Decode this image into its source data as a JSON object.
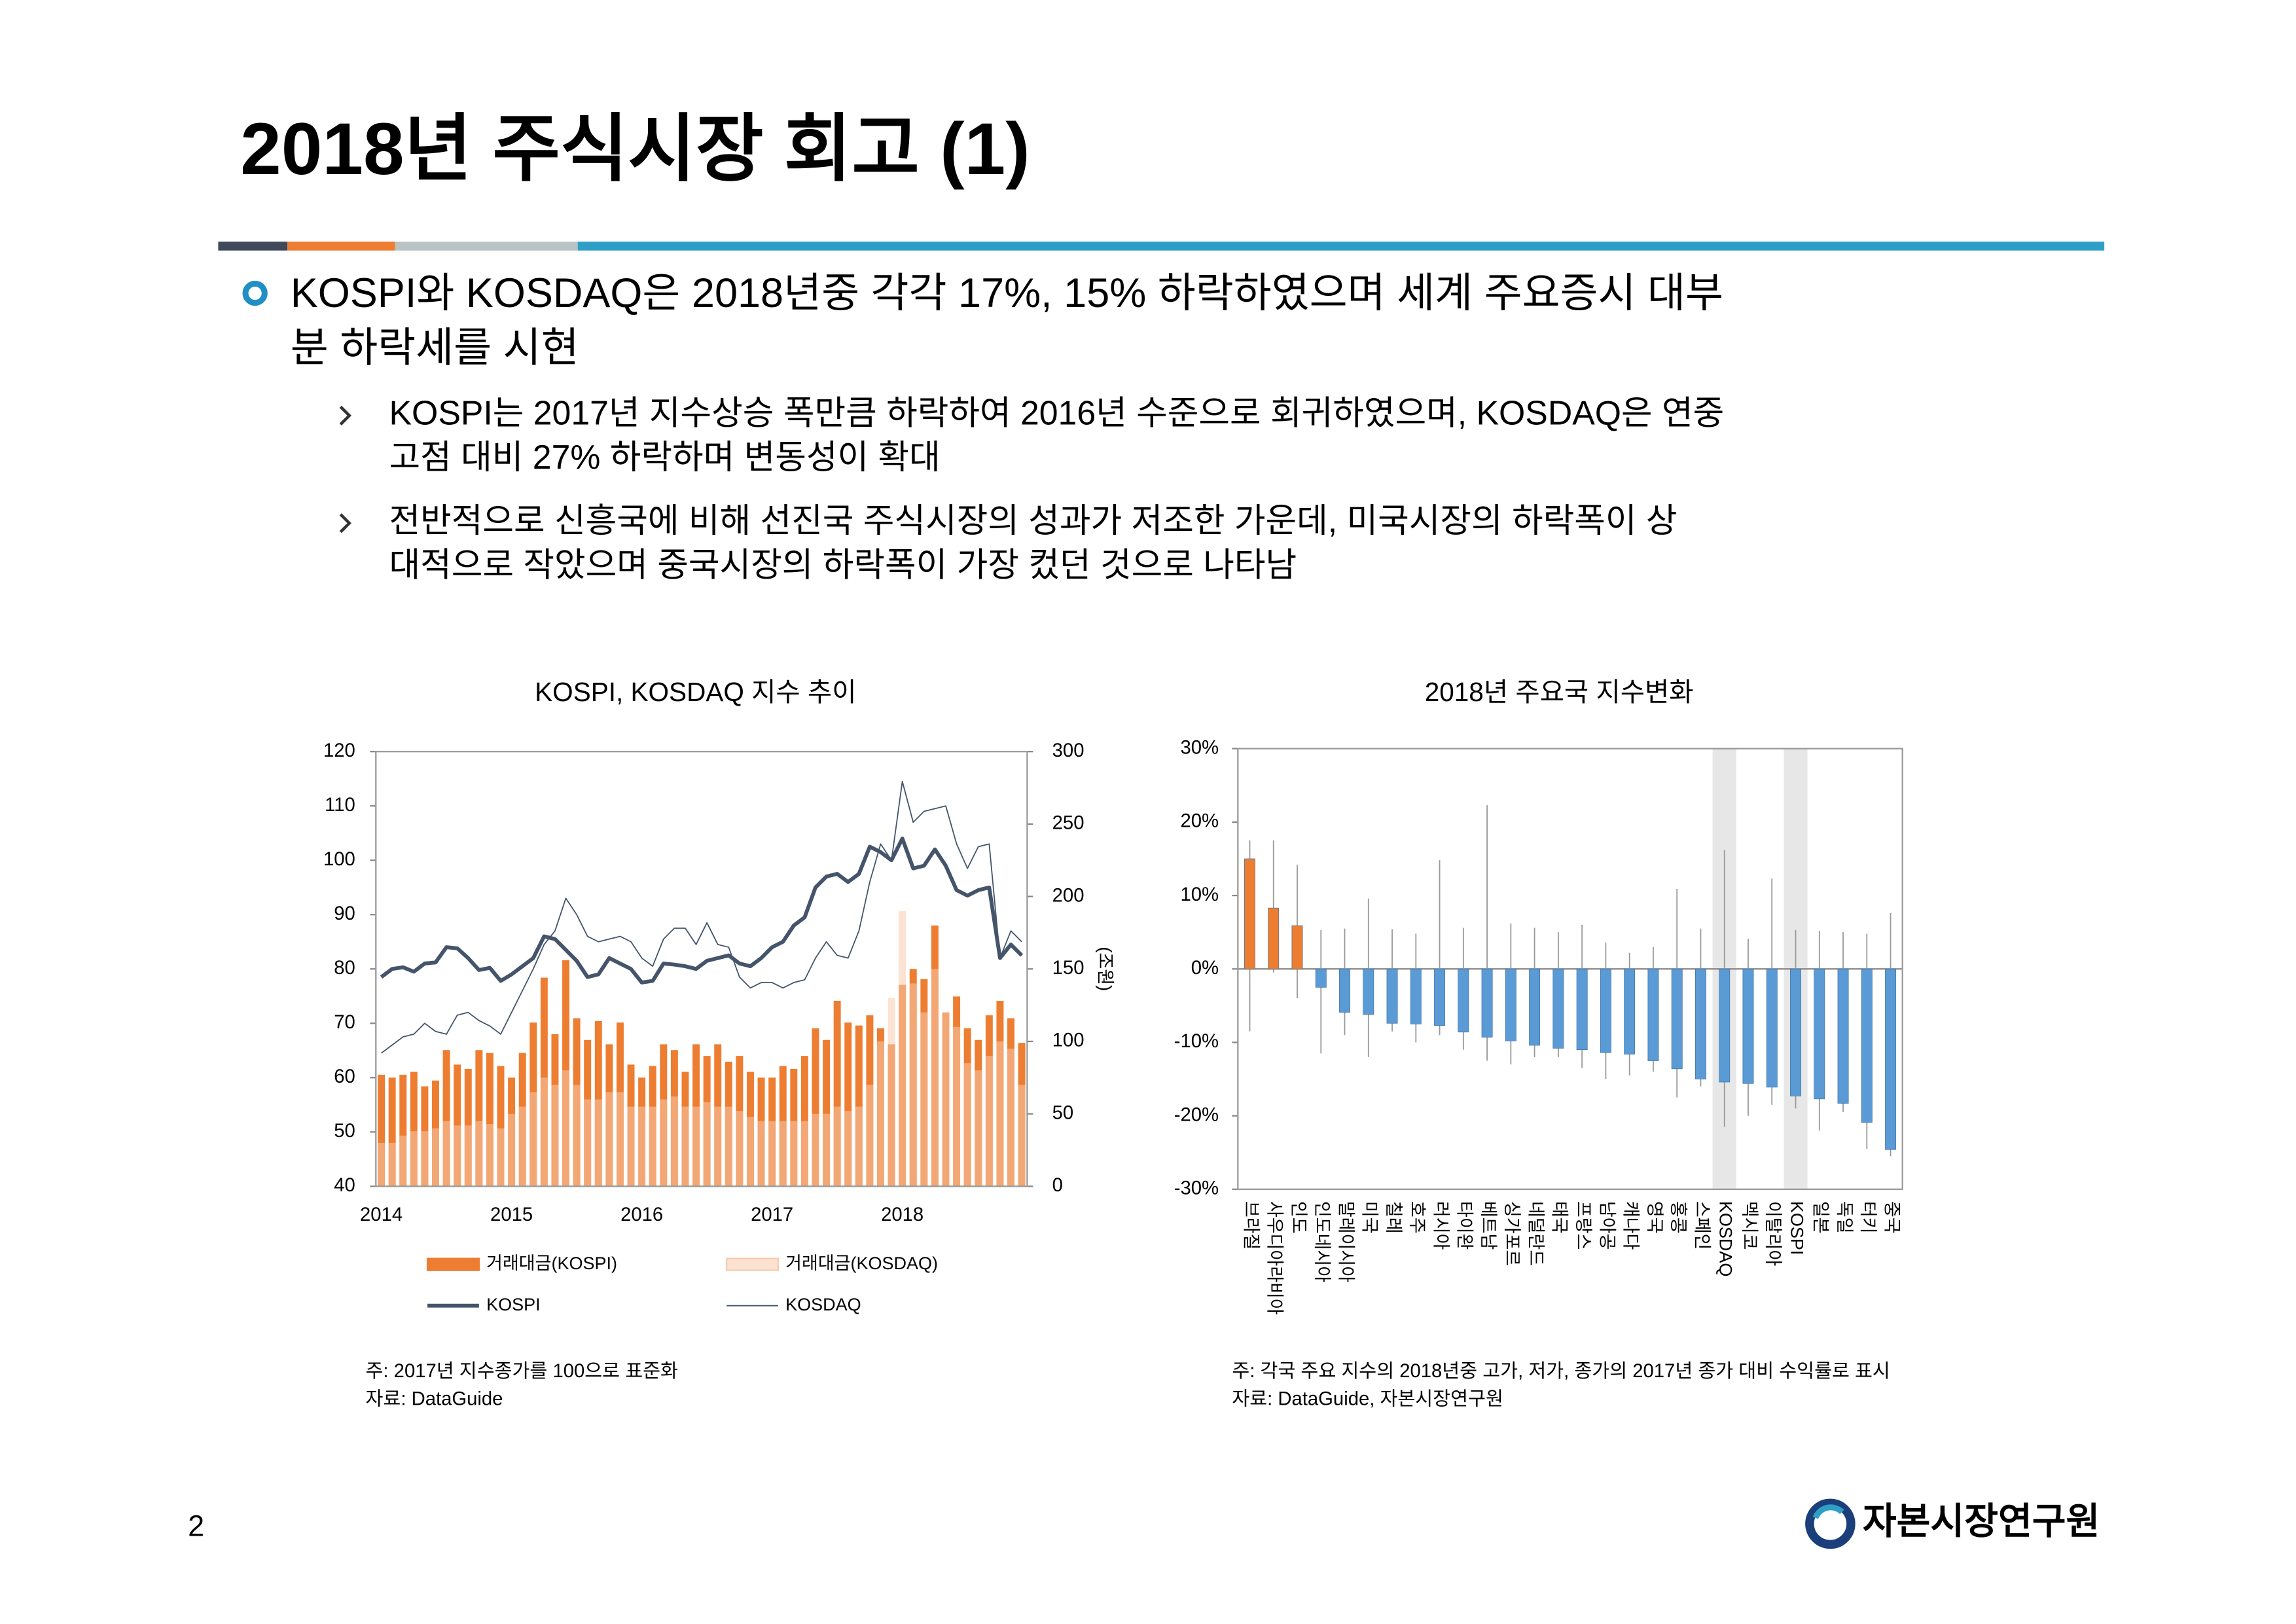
{
  "header": {
    "title": "2018년 주식시장 회고 (1)"
  },
  "bullet": {
    "lines": [
      "KOSPI와 KOSDAQ은 2018년중 각각 17%, 15% 하락하였으며 세계 주요증시 대부",
      "분 하락세를 시현"
    ],
    "sub": [
      {
        "lines": [
          "KOSPI는 2017년 지수상승 폭만큼 하락하여 2016년 수준으로 회귀하였으며, KOSDAQ은 연중",
          "고점 대비 27% 하락하며 변동성이 확대"
        ]
      },
      {
        "lines": [
          "전반적으로 신흥국에 비해 선진국 주식시장의 성과가 저조한 가운데, 미국시장의 하락폭이 상",
          "대적으로 작았으며 중국시장의 하락폭이 가장 컸던 것으로 나타남"
        ]
      }
    ]
  },
  "chart_data": [
    {
      "type": "combo",
      "title": "KOSPI, KOSDAQ 지수 추이",
      "categories": [
        "2014",
        null,
        null,
        null,
        null,
        null,
        null,
        null,
        null,
        null,
        null,
        null,
        "2015",
        null,
        null,
        null,
        null,
        null,
        null,
        null,
        null,
        null,
        null,
        null,
        "2016",
        null,
        null,
        null,
        null,
        null,
        null,
        null,
        null,
        null,
        null,
        null,
        "2017",
        null,
        null,
        null,
        null,
        null,
        null,
        null,
        null,
        null,
        null,
        null,
        "2018",
        null,
        null,
        null,
        null,
        null,
        null,
        null,
        null,
        null,
        null,
        null
      ],
      "ylim": [
        40,
        120
      ],
      "yticks": [
        40,
        50,
        60,
        70,
        80,
        90,
        100,
        110,
        120
      ],
      "y2lim": [
        0,
        300
      ],
      "y2ticks": [
        0,
        50,
        100,
        150,
        200,
        250,
        300
      ],
      "y2label": "(조원)",
      "series": [
        {
          "name": "거래대금(KOSPI)",
          "type": "bar",
          "axis": "y2",
          "color": "#ED7D31",
          "opacity": 1,
          "values": [
            77,
            75,
            77,
            79,
            69,
            73,
            94,
            84,
            81,
            94,
            92,
            83,
            75,
            92,
            113,
            144,
            105,
            156,
            116,
            101,
            114,
            98,
            113,
            84,
            75,
            83,
            98,
            94,
            79,
            98,
            90,
            98,
            86,
            90,
            79,
            75,
            75,
            83,
            81,
            90,
            109,
            101,
            128,
            113,
            111,
            118,
            109,
            98,
            139,
            150,
            143,
            180,
            120,
            131,
            109,
            101,
            118,
            128,
            116,
            99
          ]
        },
        {
          "name": "거래대금(KOSDAQ)",
          "type": "bar",
          "axis": "y2",
          "color": "#F8CBAD",
          "opacity": 0.55,
          "values": [
            30,
            30,
            35,
            38,
            38,
            40,
            45,
            42,
            42,
            45,
            43,
            40,
            50,
            55,
            65,
            75,
            70,
            80,
            70,
            60,
            60,
            65,
            65,
            55,
            55,
            55,
            60,
            62,
            55,
            55,
            58,
            55,
            55,
            52,
            48,
            45,
            45,
            45,
            45,
            45,
            50,
            50,
            55,
            52,
            55,
            70,
            100,
            130,
            190,
            140,
            120,
            150,
            120,
            110,
            85,
            80,
            90,
            100,
            95,
            70
          ]
        },
        {
          "name": "KOSPI",
          "type": "line",
          "color": "#44546A",
          "line_width": 2.6,
          "values": [
            78.5,
            80,
            80.3,
            79.5,
            81,
            81.2,
            84,
            83.8,
            82,
            79.8,
            80.2,
            77.8,
            79,
            80.5,
            82,
            86,
            85.5,
            83.5,
            81.5,
            78.5,
            79,
            82,
            81,
            80,
            77.5,
            77.8,
            81,
            80.8,
            80.5,
            80,
            81.5,
            82,
            82.5,
            81,
            80.5,
            82,
            84,
            85,
            88,
            89.5,
            95,
            97,
            97.5,
            96,
            97.5,
            102.5,
            101.5,
            100,
            104,
            98.5,
            99,
            102,
            99,
            94.5,
            93.5,
            94.5,
            95,
            82,
            84.5,
            82.5
          ]
        },
        {
          "name": "KOSDAQ",
          "type": "line",
          "color": "#44546A",
          "line_width": 0.8,
          "values": [
            64.5,
            66,
            67.5,
            68,
            70,
            68.5,
            68,
            71.5,
            72,
            70.5,
            69.5,
            68,
            72,
            76,
            80,
            84.5,
            87,
            93,
            90,
            86,
            85,
            85.5,
            86,
            85,
            82,
            80.5,
            85.5,
            87.5,
            87.5,
            84.5,
            88.5,
            84.5,
            84,
            78.5,
            76.5,
            77.5,
            77.5,
            76.5,
            77.5,
            78,
            82,
            85,
            82.5,
            82,
            87,
            96,
            103,
            100,
            114.5,
            107,
            109,
            109.5,
            110,
            103,
            98.5,
            102.5,
            103,
            82,
            87,
            85
          ]
        }
      ],
      "notes": [
        "주: 2017년 지수종가를 100으로 표준화",
        "자료: DataGuide"
      ]
    },
    {
      "type": "bar",
      "title": "2018년 주요국 지수변화",
      "categories": [
        "브라질",
        "사우디아라비아",
        "인도",
        "인도네시아",
        "말레이시아",
        "미국",
        "칠레",
        "호주",
        "러시아",
        "타이완",
        "베트남",
        "싱가포르",
        "네덜란드",
        "태국",
        "프랑스",
        "남아공",
        "캐나다",
        "영국",
        "홍콩",
        "스페인",
        "KOSDAQ",
        "멕시코",
        "이탈리아",
        "KOSPI",
        "일본",
        "독일",
        "터키",
        "중국"
      ],
      "values": [
        15,
        8.3,
        5.9,
        -2.5,
        -5.9,
        -6.2,
        -7.4,
        -7.5,
        -7.7,
        -8.6,
        -9.3,
        -9.8,
        -10.4,
        -10.8,
        -11,
        -11.4,
        -11.6,
        -12.5,
        -13.6,
        -15,
        -15.4,
        -15.6,
        -16.1,
        -17.3,
        -17.7,
        -18.3,
        -20.9,
        -24.6
      ],
      "high": [
        17.5,
        17.5,
        14.2,
        5.3,
        5.5,
        9.6,
        5.4,
        4.8,
        14.8,
        5.6,
        22.3,
        6.2,
        5.6,
        5,
        6,
        3.6,
        2.2,
        3,
        10.9,
        5.5,
        16.2,
        4.1,
        12.3,
        5.3,
        5.2,
        5,
        4.8,
        7.6
      ],
      "low": [
        -8.5,
        -0.5,
        -4,
        -11.5,
        -9,
        -12,
        -8.5,
        -10,
        -9,
        -11,
        -12.5,
        -13,
        -12,
        -12,
        -13.5,
        -15,
        -14.5,
        -14,
        -17.5,
        -16,
        -21.5,
        -20,
        -18.5,
        -19,
        -22,
        -19.5,
        -24.5,
        -25.5
      ],
      "colors": [
        "#ED7D31",
        "#ED7D31",
        "#ED7D31",
        "#5B9BD5",
        "#5B9BD5",
        "#5B9BD5",
        "#5B9BD5",
        "#5B9BD5",
        "#5B9BD5",
        "#5B9BD5",
        "#5B9BD5",
        "#5B9BD5",
        "#5B9BD5",
        "#5B9BD5",
        "#5B9BD5",
        "#5B9BD5",
        "#5B9BD5",
        "#5B9BD5",
        "#5B9BD5",
        "#5B9BD5",
        "#5B9BD5",
        "#5B9BD5",
        "#5B9BD5",
        "#5B9BD5",
        "#5B9BD5",
        "#5B9BD5",
        "#5B9BD5",
        "#5B9BD5"
      ],
      "highlight": [
        false,
        false,
        false,
        false,
        false,
        false,
        false,
        false,
        false,
        false,
        false,
        false,
        false,
        false,
        false,
        false,
        false,
        false,
        false,
        false,
        true,
        false,
        false,
        true,
        false,
        false,
        false,
        false
      ],
      "ylim": [
        -30,
        30
      ],
      "yticks": [
        {
          "value": -30,
          "label": "-30%"
        },
        {
          "value": -20,
          "label": "-20%"
        },
        {
          "value": -10,
          "label": "-10%"
        },
        {
          "value": 0,
          "label": "0%"
        },
        {
          "value": 10,
          "label": "10%"
        },
        {
          "value": 20,
          "label": "20%"
        },
        {
          "value": 30,
          "label": "30%"
        }
      ],
      "notes": [
        "주: 각국 주요 지수의 2018년중 고가, 저가, 종가의 2017년 종가 대비 수익률로 표시",
        "자료: DataGuide, 자본시장연구원"
      ]
    }
  ],
  "footer": {
    "page": "2",
    "logo": "자본시장연구원"
  }
}
